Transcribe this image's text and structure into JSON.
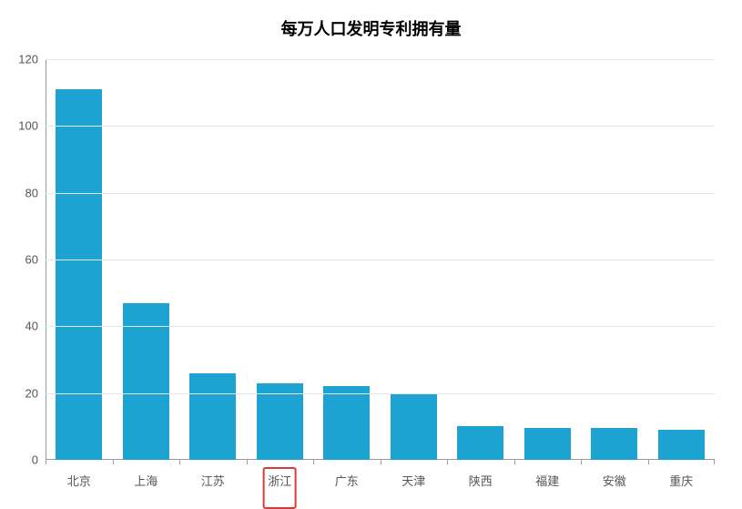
{
  "chart": {
    "type": "bar",
    "title": "每万人口发明专利拥有量",
    "title_fontsize": 18,
    "title_color": "#000000",
    "categories": [
      "北京",
      "上海",
      "江苏",
      "浙江",
      "广东",
      "天津",
      "陕西",
      "福建",
      "安徽",
      "重庆"
    ],
    "values": [
      111,
      47,
      26,
      23,
      22,
      20,
      10,
      9.5,
      9.5,
      9
    ],
    "bar_color": "#1ca3d2",
    "bar_width": 0.7,
    "background_color": "#ffffff",
    "grid_color": "#e6e6e6",
    "axis_line_color": "#999999",
    "ylim": [
      0,
      120
    ],
    "ytick_step": 20,
    "yticks": [
      0,
      20,
      40,
      60,
      80,
      100,
      120
    ],
    "label_fontsize": 13,
    "label_color": "#555555",
    "highlight_index": 3,
    "highlight_border_color": "#d93a3a"
  }
}
